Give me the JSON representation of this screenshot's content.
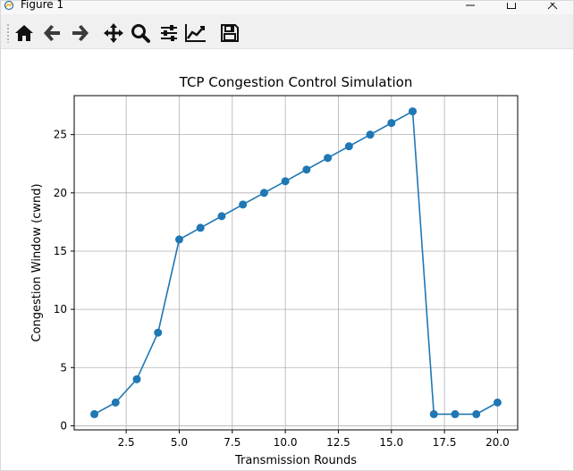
{
  "window": {
    "title": "Figure 1",
    "minimize_icon": "minimize-icon",
    "maximize_icon": "maximize-icon",
    "close_icon": "close-icon"
  },
  "toolbar": {
    "buttons": [
      {
        "name": "home",
        "icon": "home-icon"
      },
      {
        "name": "back",
        "icon": "arrow-left-icon"
      },
      {
        "name": "forward",
        "icon": "arrow-right-icon"
      },
      {
        "name": "pan",
        "icon": "move-icon"
      },
      {
        "name": "zoom",
        "icon": "magnifier-icon"
      },
      {
        "name": "subplots",
        "icon": "sliders-icon"
      },
      {
        "name": "customize",
        "icon": "line-chart-icon"
      },
      {
        "name": "save",
        "icon": "floppy-disk-icon"
      }
    ]
  },
  "chart_data": {
    "type": "line",
    "title": "TCP Congestion Control Simulation",
    "xlabel": "Transmission Rounds",
    "ylabel": "Congestion Window (cwnd)",
    "x": [
      1,
      2,
      3,
      4,
      5,
      6,
      7,
      8,
      9,
      10,
      11,
      12,
      13,
      14,
      15,
      16,
      17,
      18,
      19,
      20
    ],
    "values": [
      1,
      2,
      4,
      8,
      16,
      17,
      18,
      19,
      20,
      21,
      22,
      23,
      24,
      25,
      26,
      27,
      1,
      1,
      1,
      2
    ],
    "xlim": [
      0.05,
      20.95
    ],
    "ylim": [
      -0.35,
      28.35
    ],
    "x_ticks": [
      2.5,
      5.0,
      7.5,
      10.0,
      12.5,
      15.0,
      17.5,
      20.0
    ],
    "x_tick_labels": [
      "2.5",
      "5.0",
      "7.5",
      "10.0",
      "12.5",
      "15.0",
      "17.5",
      "20.0"
    ],
    "y_ticks": [
      0,
      5,
      10,
      15,
      20,
      25
    ],
    "y_tick_labels": [
      "0",
      "5",
      "10",
      "15",
      "20",
      "25"
    ],
    "grid": true,
    "marker": "circle",
    "line_color": "#1f77b4"
  }
}
